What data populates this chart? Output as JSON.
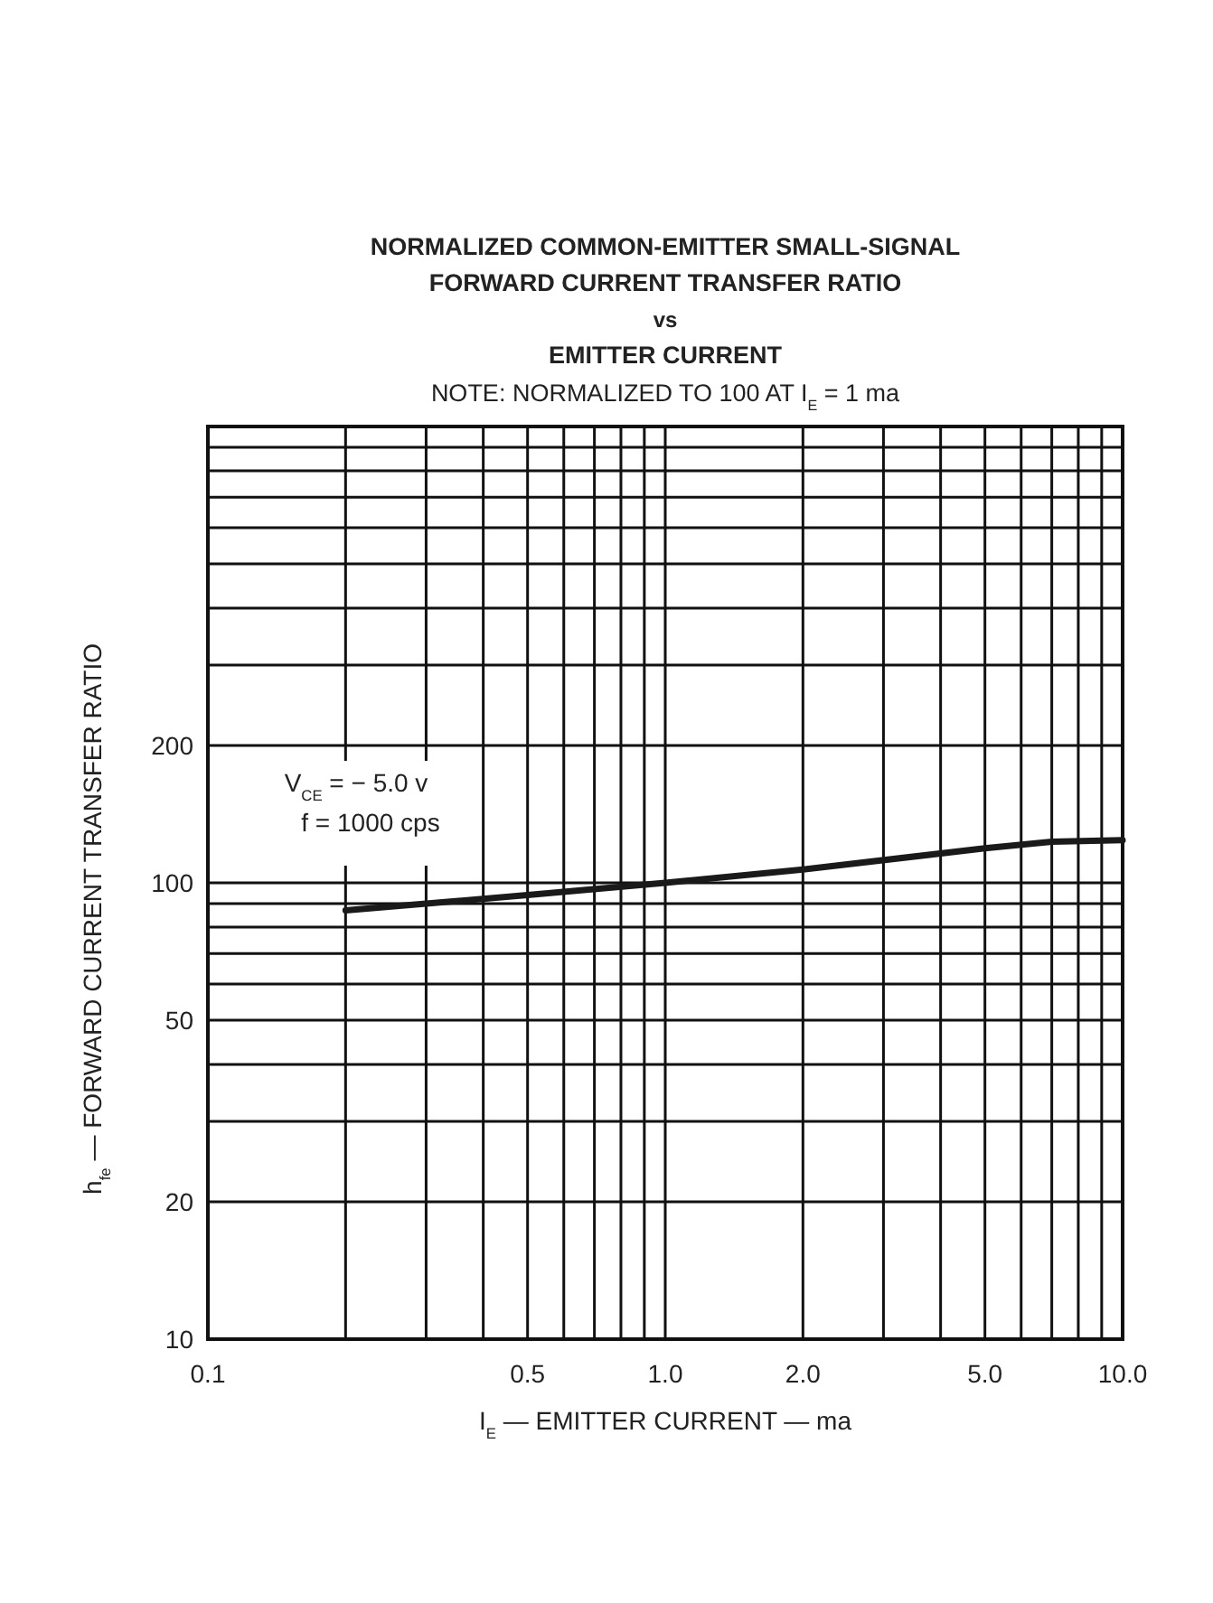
{
  "chart_data": {
    "type": "line",
    "title": "NORMALIZED COMMON-EMITTER SMALL-SIGNAL\nFORWARD CURRENT TRANSFER RATIO\nvs\nEMITTER CURRENT",
    "subtitle": "NOTE: NORMALIZED TO 100 AT I$_{E}$ = 1 ma",
    "xlabel": "I$_{E}$ — EMITTER CURRENT — ma",
    "ylabel": "h$_{fe}$ — FORWARD CURRENT TRANSFER RATIO",
    "log": "xy",
    "grid": true,
    "xlim": [
      0.1,
      10
    ],
    "ylim": [
      10,
      1000
    ],
    "xticks": [
      0.1,
      {
        "value": 0.2,
        "label": null
      },
      {
        "value": 0.3,
        "label": null
      },
      {
        "value": 0.4,
        "label": null
      },
      {
        "value": 0.5,
        "label": "0.5"
      },
      {
        "value": 0.6,
        "label": null
      },
      {
        "value": 0.7,
        "label": null
      },
      {
        "value": 0.8,
        "label": null
      },
      {
        "value": 0.9,
        "label": null
      },
      {
        "value": 1,
        "label": "1.0"
      },
      {
        "value": 2,
        "label": "2.0"
      },
      {
        "value": 3,
        "label": null
      },
      {
        "value": 4,
        "label": null
      },
      {
        "value": 5,
        "label": "5.0"
      },
      {
        "value": 6,
        "label": null
      },
      {
        "value": 7,
        "label": null
      },
      {
        "value": 8,
        "label": null
      },
      {
        "value": 9,
        "label": null
      },
      {
        "value": 10,
        "label": "10.0"
      }
    ],
    "yticks": [
      10,
      20,
      {
        "value": 30,
        "label": null
      },
      {
        "value": 40,
        "label": null
      },
      50,
      {
        "value": 60,
        "label": null
      },
      {
        "value": 70,
        "label": null
      },
      {
        "value": 80,
        "label": null
      },
      {
        "value": 90,
        "label": null
      },
      100,
      200,
      {
        "value": 300,
        "label": null
      },
      {
        "value": 400,
        "label": null
      },
      {
        "value": 500,
        "label": null
      },
      {
        "value": 600,
        "label": null
      },
      {
        "value": 700,
        "label": null
      },
      {
        "value": 800,
        "label": null
      },
      {
        "value": 900,
        "label": null
      },
      {
        "value": 1000,
        "label": null
      }
    ],
    "annotations": [
      "V$_{CE}$ = − 5.0 v",
      "f = 1000 cps"
    ],
    "series": [
      {
        "color": "#1a1a1a",
        "x": [
          0.2,
          0.3,
          0.5,
          1,
          2,
          5,
          7,
          10
        ],
        "values": [
          87,
          90,
          94,
          100,
          107,
          119,
          123,
          124
        ]
      }
    ]
  }
}
